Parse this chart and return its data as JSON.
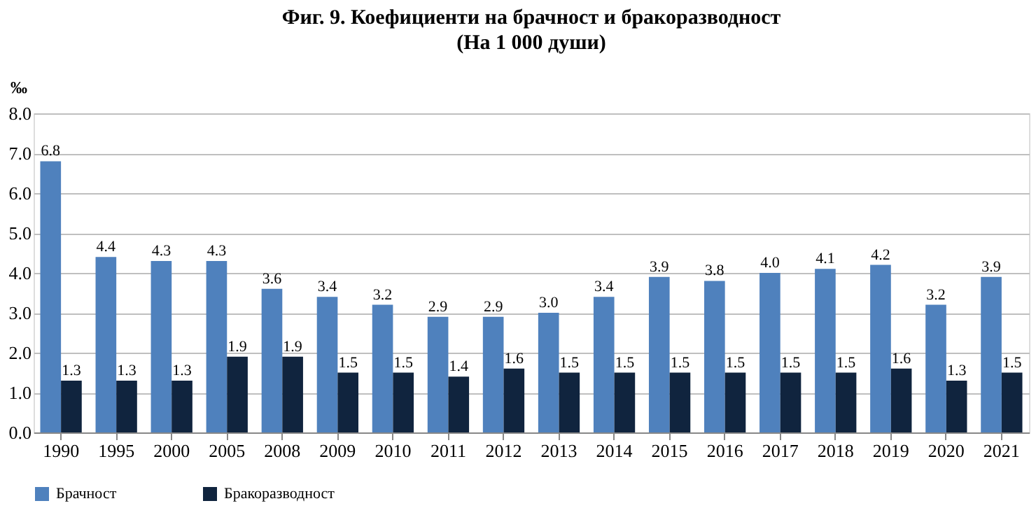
{
  "chart_data": {
    "type": "bar",
    "title": "Фиг. 9. Коефициенти на брачност и бракоразводност",
    "subtitle": "(На 1 000 души)",
    "ylabel": "‰",
    "categories": [
      "1990",
      "1995",
      "2000",
      "2005",
      "2008",
      "2009",
      "2010",
      "2011",
      "2012",
      "2013",
      "2014",
      "2015",
      "2016",
      "2017",
      "2018",
      "2019",
      "2020",
      "2021"
    ],
    "series": [
      {
        "name": "Брачност",
        "color": "#4f81bd",
        "values": [
          6.8,
          4.4,
          4.3,
          4.3,
          3.6,
          3.4,
          3.2,
          2.9,
          2.9,
          3.0,
          3.4,
          3.9,
          3.8,
          4.0,
          4.1,
          4.2,
          3.2,
          3.9
        ],
        "value_labels": [
          "6.8",
          "4.4",
          "4.3",
          "4.3",
          "3.6",
          "3.4",
          "3.2",
          "2.9",
          "2.9",
          "3.0",
          "3.4",
          "3.9",
          "3.8",
          "4.0",
          "4.1",
          "4.2",
          "3.2",
          "3.9"
        ]
      },
      {
        "name": "Бракоразводност",
        "color": "#10243e",
        "values": [
          1.3,
          1.3,
          1.3,
          1.9,
          1.9,
          1.5,
          1.5,
          1.4,
          1.6,
          1.5,
          1.5,
          1.5,
          1.5,
          1.5,
          1.5,
          1.6,
          1.3,
          1.5
        ],
        "value_labels": [
          "1.3",
          "1.3",
          "1.3",
          "1.9",
          "1.9",
          "1.5",
          "1.5",
          "1.4",
          "1.6",
          "1.5",
          "1.5",
          "1.5",
          "1.5",
          "1.5",
          "1.5",
          "1.6",
          "1.3",
          "1.5"
        ]
      }
    ],
    "ylim": [
      0,
      8
    ],
    "yticks": [
      {
        "value": 0,
        "label": "0.0"
      },
      {
        "value": 1,
        "label": "1.0"
      },
      {
        "value": 2,
        "label": "2.0"
      },
      {
        "value": 3,
        "label": "3.0"
      },
      {
        "value": 4,
        "label": "4.0"
      },
      {
        "value": 5,
        "label": "5.0"
      },
      {
        "value": 6,
        "label": "6.0"
      },
      {
        "value": 7,
        "label": "7.0"
      },
      {
        "value": 8,
        "label": "8.0"
      }
    ],
    "grid": "y",
    "legend": "bottom"
  }
}
